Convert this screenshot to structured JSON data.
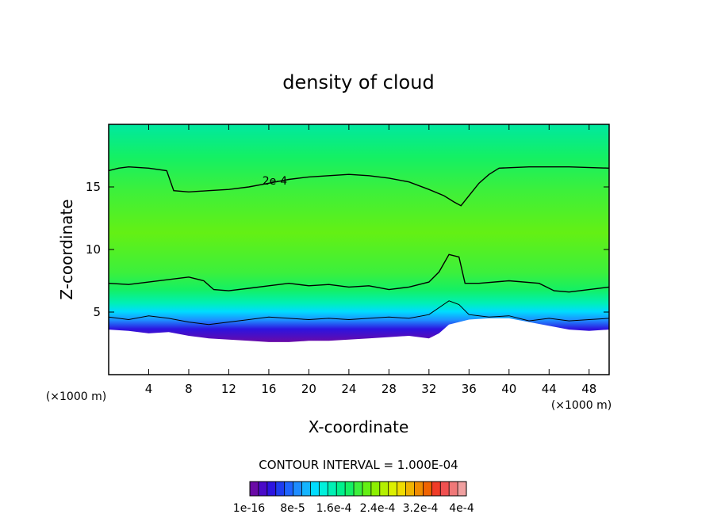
{
  "chart_data": {
    "type": "heatmap",
    "title": "density of cloud",
    "xlabel": "X-coordinate",
    "ylabel": "Z-coordinate",
    "x_unit": "(×1000 m)",
    "z_unit": "(×1000 m)",
    "xlim": [
      0,
      50
    ],
    "ylim": [
      0,
      20
    ],
    "x_ticks": [
      4,
      8,
      12,
      16,
      20,
      24,
      28,
      32,
      36,
      40,
      44,
      48
    ],
    "y_ticks": [
      5,
      10,
      15
    ],
    "contour_interval_text": "CONTOUR INTERVAL = 1.000E-04",
    "contour_label": "2e-4",
    "colorbar_labels": [
      "1e-16",
      "8e-5",
      "1.6e-4",
      "2.4e-4",
      "3.2e-4",
      "4e-4"
    ],
    "colorbar_colors": [
      "#6a0aa6",
      "#4a0ac8",
      "#2c14e0",
      "#1e3cf0",
      "#1e64ff",
      "#1e8cff",
      "#14b4ff",
      "#00dcff",
      "#00f0dc",
      "#00f0b4",
      "#00f08c",
      "#14f064",
      "#3cf03c",
      "#64f014",
      "#8cf000",
      "#b4f000",
      "#dcf000",
      "#f0dc00",
      "#f0b400",
      "#f08c00",
      "#f06400",
      "#f03c28",
      "#f05050",
      "#f07878",
      "#f0a0a0"
    ],
    "cloud_base_km": [
      [
        0,
        3.6
      ],
      [
        2,
        3.5
      ],
      [
        4,
        3.3
      ],
      [
        6,
        3.4
      ],
      [
        8,
        3.1
      ],
      [
        10,
        2.9
      ],
      [
        12,
        2.8
      ],
      [
        14,
        2.7
      ],
      [
        16,
        2.6
      ],
      [
        18,
        2.6
      ],
      [
        20,
        2.7
      ],
      [
        22,
        2.7
      ],
      [
        24,
        2.8
      ],
      [
        26,
        2.9
      ],
      [
        28,
        3.0
      ],
      [
        30,
        3.1
      ],
      [
        32,
        2.9
      ],
      [
        33,
        3.3
      ],
      [
        34,
        4.0
      ],
      [
        36,
        4.4
      ],
      [
        38,
        4.5
      ],
      [
        40,
        4.5
      ],
      [
        42,
        4.2
      ],
      [
        44,
        3.9
      ],
      [
        46,
        3.6
      ],
      [
        48,
        3.5
      ],
      [
        50,
        3.6
      ]
    ],
    "contour_2e-4_km": [
      [
        0,
        16.3
      ],
      [
        1,
        16.5
      ],
      [
        2,
        16.6
      ],
      [
        4,
        16.5
      ],
      [
        5.8,
        16.3
      ],
      [
        6.5,
        14.7
      ],
      [
        8,
        14.6
      ],
      [
        10,
        14.7
      ],
      [
        12,
        14.8
      ],
      [
        14,
        15.0
      ],
      [
        16,
        15.3
      ],
      [
        18,
        15.6
      ],
      [
        20,
        15.8
      ],
      [
        22,
        15.9
      ],
      [
        24,
        16.0
      ],
      [
        26,
        15.9
      ],
      [
        28,
        15.7
      ],
      [
        30,
        15.4
      ],
      [
        32,
        14.8
      ],
      [
        33.5,
        14.3
      ],
      [
        34.5,
        13.8
      ],
      [
        35.2,
        13.5
      ],
      [
        36,
        14.3
      ],
      [
        37,
        15.3
      ],
      [
        38,
        16.0
      ],
      [
        39,
        16.5
      ],
      [
        42,
        16.6
      ],
      [
        46,
        16.6
      ],
      [
        50,
        16.5
      ]
    ],
    "contour_lower_km": [
      [
        0,
        7.3
      ],
      [
        2,
        7.2
      ],
      [
        4,
        7.4
      ],
      [
        6,
        7.6
      ],
      [
        8,
        7.8
      ],
      [
        9.5,
        7.5
      ],
      [
        10.5,
        6.8
      ],
      [
        12,
        6.7
      ],
      [
        14,
        6.9
      ],
      [
        16,
        7.1
      ],
      [
        18,
        7.3
      ],
      [
        20,
        7.1
      ],
      [
        22,
        7.2
      ],
      [
        24,
        7.0
      ],
      [
        26,
        7.1
      ],
      [
        28,
        6.8
      ],
      [
        30,
        7.0
      ],
      [
        32,
        7.4
      ],
      [
        33,
        8.2
      ],
      [
        34,
        9.6
      ],
      [
        35,
        9.4
      ],
      [
        35.6,
        7.3
      ],
      [
        37,
        7.3
      ],
      [
        40,
        7.5
      ],
      [
        43,
        7.3
      ],
      [
        44.5,
        6.7
      ],
      [
        46,
        6.6
      ],
      [
        48,
        6.8
      ],
      [
        50,
        7.0
      ]
    ],
    "contour_base_km": [
      [
        0,
        4.6
      ],
      [
        2,
        4.4
      ],
      [
        4,
        4.7
      ],
      [
        6,
        4.5
      ],
      [
        8,
        4.2
      ],
      [
        10,
        4.0
      ],
      [
        12,
        4.2
      ],
      [
        14,
        4.4
      ],
      [
        16,
        4.6
      ],
      [
        18,
        4.5
      ],
      [
        20,
        4.4
      ],
      [
        22,
        4.5
      ],
      [
        24,
        4.4
      ],
      [
        26,
        4.5
      ],
      [
        28,
        4.6
      ],
      [
        30,
        4.5
      ],
      [
        32,
        4.8
      ],
      [
        34,
        5.9
      ],
      [
        35,
        5.6
      ],
      [
        36,
        4.8
      ],
      [
        38,
        4.6
      ],
      [
        40,
        4.7
      ],
      [
        42,
        4.3
      ],
      [
        44,
        4.5
      ],
      [
        46,
        4.3
      ],
      [
        48,
        4.4
      ],
      [
        50,
        4.5
      ]
    ]
  }
}
